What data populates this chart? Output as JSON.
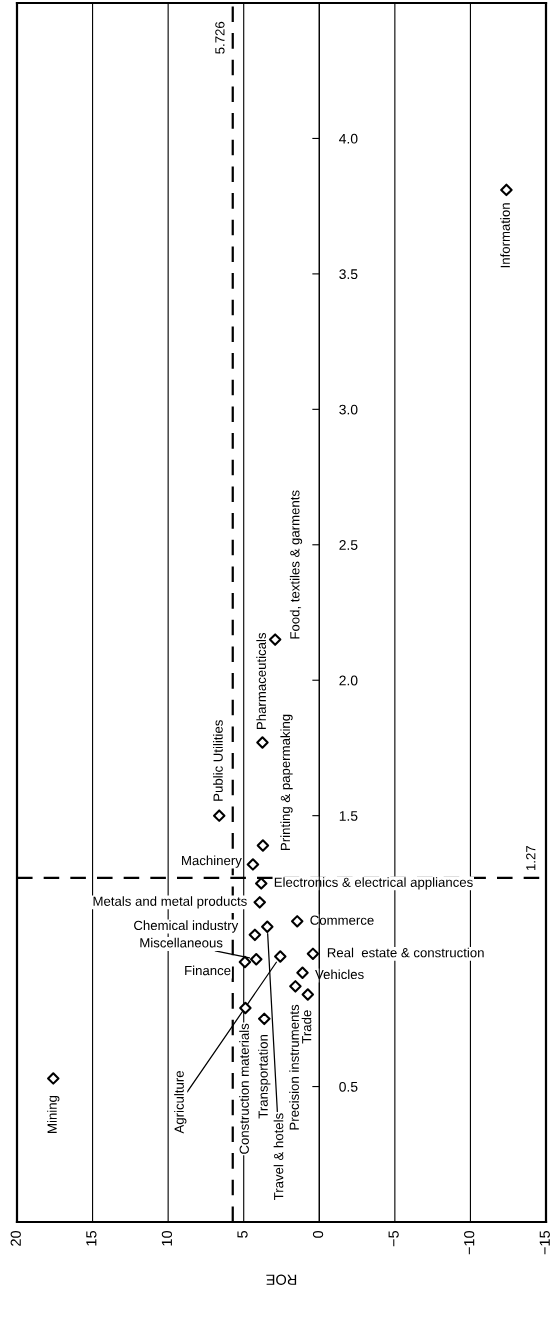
{
  "chart_data": {
    "type": "scatter",
    "xlabel": "ROE",
    "x": [
      17.6,
      6.62,
      3.76,
      2.92,
      3.73,
      4.39,
      3.84,
      3.94,
      1.46,
      4.26,
      3.44,
      4.17,
      4.92,
      2.58,
      0.42,
      1.11,
      1.58,
      0.76,
      4.89,
      3.64,
      -12.38
    ],
    "values": [
      0.53,
      1.5,
      1.77,
      2.15,
      1.39,
      1.32,
      1.25,
      1.18,
      1.11,
      1.06,
      1.09,
      0.97,
      0.96,
      0.98,
      0.99,
      0.92,
      0.87,
      0.84,
      0.79,
      0.75,
      3.81
    ],
    "color": "#000000",
    "marker": "diamond",
    "xlim": [
      20,
      -15
    ],
    "xticks": [
      20,
      15,
      10,
      5,
      0,
      {
        "value": -5,
        "label": "−5"
      },
      {
        "value": -10,
        "label": "−10"
      },
      {
        "value": -15,
        "label": "−15"
      }
    ],
    "ylim": [
      0,
      4.5
    ],
    "yticks": [
      0.5,
      1.5,
      {
        "value": 2,
        "label": "2.0"
      },
      2.5,
      {
        "value": 3,
        "label": "3.0"
      },
      3.5,
      {
        "value": 4,
        "label": "4.0"
      }
    ],
    "grid": "x",
    "ref_lines": [
      {
        "axis": "x",
        "value": 5.726,
        "label": "5.726",
        "line_style": "dashed"
      },
      {
        "axis": "y",
        "value": 1.27,
        "label": "1.27",
        "line_style": "dashed"
      }
    ],
    "annotations": [
      {
        "text": "Mining",
        "x": 17.6,
        "y": 0.53
      },
      {
        "text": "Public Utilities",
        "x": 6.62,
        "y": 1.5
      },
      {
        "text": "Pharmaceuticals",
        "x": 3.76,
        "y": 1.77
      },
      {
        "text": "Food, textiles & garments",
        "x": 2.92,
        "y": 2.15
      },
      {
        "text": "Printing & papermaking",
        "x": 3.73,
        "y": 1.39
      },
      {
        "text": "Machinery",
        "x": 4.39,
        "y": 1.32
      },
      {
        "text": "Electronics & electrical appliances",
        "x": 3.84,
        "y": 1.25
      },
      {
        "text": "Metals and metal products",
        "x": 3.94,
        "y": 1.18
      },
      {
        "text": "Commerce",
        "x": 1.46,
        "y": 1.11
      },
      {
        "text": "Chemical industry",
        "x": 4.26,
        "y": 1.06
      },
      {
        "text": "Travel & hotels",
        "x": 3.44,
        "y": 1.09
      },
      {
        "text": "Miscellaneous",
        "x": 4.17,
        "y": 0.97
      },
      {
        "text": "Finance",
        "x": 4.92,
        "y": 0.96
      },
      {
        "text": "Agriculture",
        "x": 2.58,
        "y": 0.98
      },
      {
        "text": "Real  estate & construction",
        "x": 0.42,
        "y": 0.99
      },
      {
        "text": "Vehicles",
        "x": 1.11,
        "y": 0.92
      },
      {
        "text": "Precision instruments",
        "x": 1.58,
        "y": 0.87
      },
      {
        "text": "Trade",
        "x": 0.76,
        "y": 0.84
      },
      {
        "text": "Construction materials",
        "x": 4.89,
        "y": 0.79
      },
      {
        "text": "Transportation",
        "x": 3.64,
        "y": 0.75
      },
      {
        "text": "Information",
        "x": -12.38,
        "y": 3.81
      }
    ]
  }
}
